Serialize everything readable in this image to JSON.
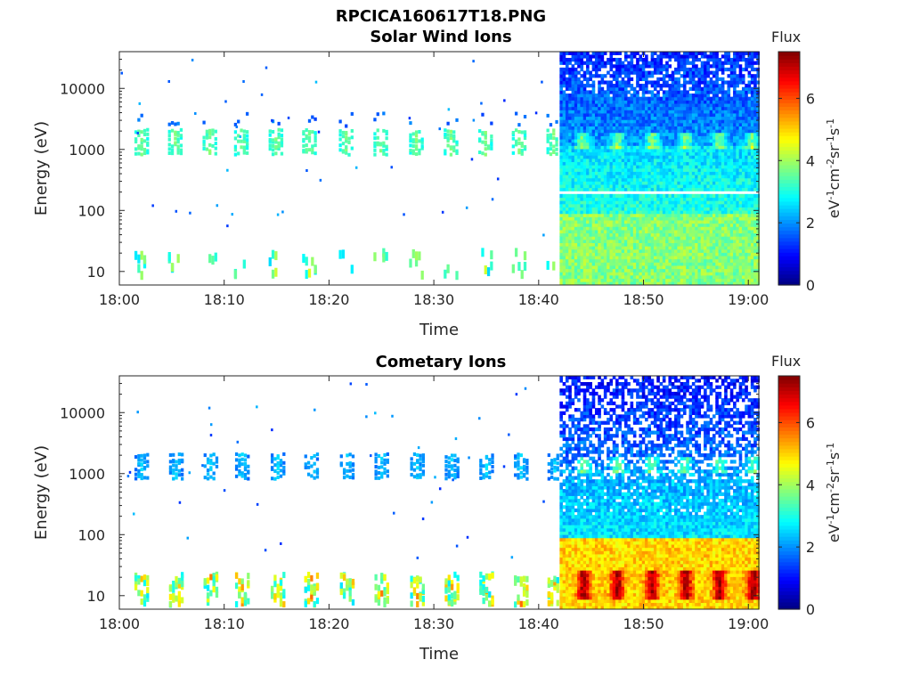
{
  "figure": {
    "title": "RPCICA160617T18.PNG"
  },
  "chart_data": [
    {
      "type": "heatmap",
      "title": "Solar Wind Ions",
      "xlabel": "Time",
      "ylabel": "Energy (eV)",
      "y_scale": "log",
      "ylim": [
        6,
        40000
      ],
      "xlim": [
        "18:00",
        "19:01"
      ],
      "x_ticks": [
        "18:00",
        "18:10",
        "18:20",
        "18:30",
        "18:40",
        "18:50",
        "19:00"
      ],
      "y_ticks": [
        "10",
        "100",
        "1000",
        "10000"
      ],
      "grid": false,
      "colorbar": {
        "title": "Flux",
        "label": "eV-1cm-2sr-1s-1",
        "range": [
          0,
          7.5
        ],
        "ticks": [
          "0",
          "2",
          "4",
          "6"
        ],
        "colormap": "jet"
      },
      "sparse_segment": {
        "time_range": [
          "18:00",
          "18:42"
        ],
        "pulse_times_min": [
          2,
          5.2,
          8.5,
          11.5,
          14.8,
          18,
          21.5,
          24.8,
          28.2,
          31.5,
          34.8,
          38,
          41.3
        ],
        "main_band_energy_eV": 1400,
        "secondary_band_energy_eV": 3200,
        "low_energy_band_eV": [
          10,
          25
        ]
      },
      "dense_segment": {
        "time_range": [
          "18:42",
          "19:01"
        ],
        "pulse_times_min": [
          44.2,
          47.5,
          50.8,
          54,
          57.2,
          60.3
        ],
        "pulse_energy_eV": 1400,
        "gap_energy_eV": 200,
        "flux_low_energy": 3.8,
        "flux_mid_energy": 2.6,
        "flux_high_energy": 1.2
      }
    },
    {
      "type": "heatmap",
      "title": "Cometary Ions",
      "xlabel": "Time",
      "ylabel": "Energy (eV)",
      "y_scale": "log",
      "ylim": [
        6,
        40000
      ],
      "xlim": [
        "18:00",
        "19:01"
      ],
      "x_ticks": [
        "18:00",
        "18:10",
        "18:20",
        "18:30",
        "18:40",
        "18:50",
        "19:00"
      ],
      "y_ticks": [
        "10",
        "100",
        "1000",
        "10000"
      ],
      "grid": false,
      "colorbar": {
        "title": "Flux",
        "label": "eV-1cm-2sr-1s-1",
        "range": [
          0,
          7.5
        ],
        "ticks": [
          "0",
          "2",
          "4",
          "6"
        ],
        "colormap": "jet"
      },
      "sparse_segment": {
        "time_range": [
          "18:00",
          "18:42"
        ],
        "pulse_times_min": [
          2,
          5.3,
          8.6,
          11.6,
          15,
          18.2,
          21.6,
          24.9,
          28.3,
          31.6,
          34.9,
          38.2,
          41.4
        ],
        "main_band_energy_eV": 1400,
        "low_energy_band_eV": [
          8,
          25
        ]
      },
      "dense_segment": {
        "time_range": [
          "18:42",
          "19:01"
        ],
        "pulse_times_min": [
          44.3,
          47.5,
          50.8,
          54,
          57.2,
          60.4
        ],
        "pulse_energy_eV": 1400,
        "low_energy_peak_eV": 15,
        "flux_low_energy": 5.0,
        "flux_mid_energy": 2.2,
        "flux_high_energy": 1.0
      }
    }
  ]
}
